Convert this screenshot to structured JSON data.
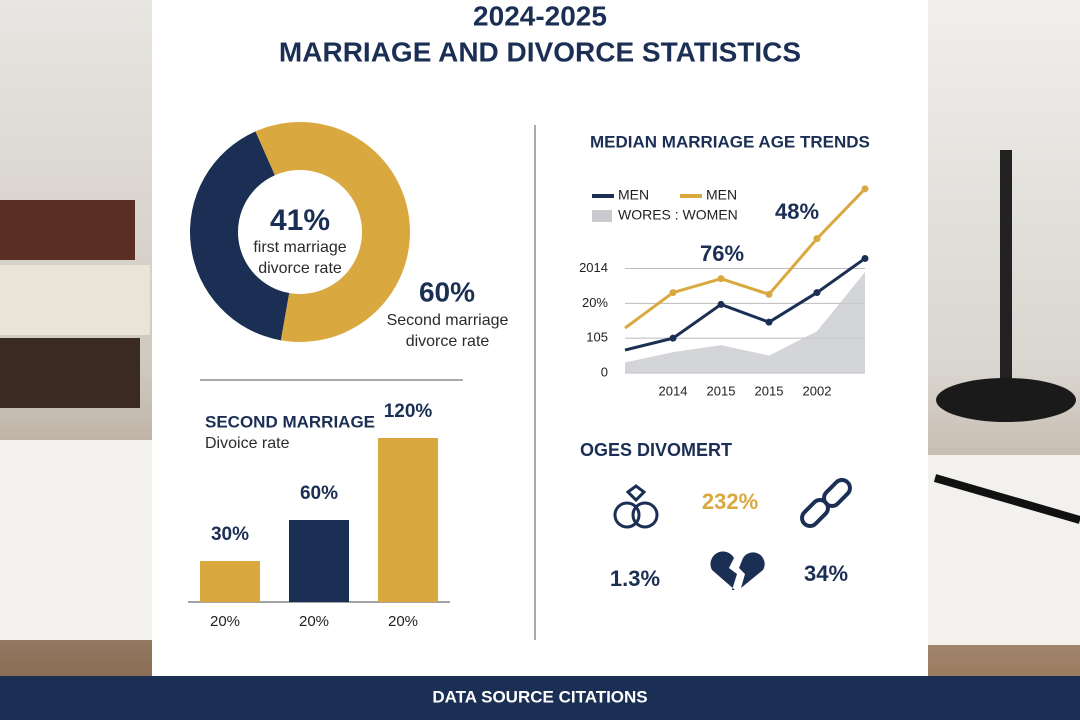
{
  "header": {
    "title": "2024-2025",
    "subtitle": "MARRIAGE AND DIVORCE STATISTICS"
  },
  "chart_data": [
    {
      "type": "donut",
      "values": [
        41,
        60
      ],
      "value_labels": [
        "41%",
        "60%"
      ],
      "labels": [
        "first marriage divorce rate",
        "Second marriage divorce rate"
      ],
      "colors": [
        "#1b2f55",
        "#d9a83e"
      ]
    },
    {
      "type": "line",
      "title": "MEDIAN MARRIAGE AGE TRENDS",
      "categories": [
        null,
        "2014",
        "2015",
        "2015",
        "2002",
        null
      ],
      "ylim": [
        0,
        5.4
      ],
      "yticks": [
        0,
        {
          "value": 1,
          "label": "105"
        },
        {
          "value": 2,
          "label": "20%"
        },
        {
          "value": 3,
          "label": "2014"
        }
      ],
      "series": [
        {
          "name": "MEN",
          "color": "#1b2f55",
          "values": [
            0.66,
            1.0,
            1.97,
            1.46,
            2.31,
            3.29
          ]
        },
        {
          "name": "MEN",
          "color": "#d9a83e",
          "values": [
            1.29,
            2.31,
            2.71,
            2.26,
            3.86,
            5.29
          ]
        },
        {
          "name": "WORES :  WOMEN",
          "color": "#c9cacf",
          "kind": "area",
          "values": [
            0.3,
            0.6,
            0.8,
            0.5,
            1.2,
            2.9
          ]
        }
      ],
      "annotations": [
        "76%",
        "48%"
      ]
    },
    {
      "type": "bar",
      "title": "SECOND MARRIAGE",
      "subtitle": "Divoice rate",
      "categories": [
        "20%",
        "20%",
        "20%"
      ],
      "values": [
        30,
        60,
        120
      ],
      "value_labels": [
        "30%",
        "60%",
        "120%"
      ],
      "colors": [
        "#d9a83e",
        "#1b2f55",
        "#d9a83e"
      ]
    }
  ],
  "stats": {
    "title": "OGES DIVOMERT",
    "items": [
      "232%",
      "1.3%",
      "34%"
    ]
  },
  "footer": {
    "text": "DATA SOURCE CITATIONS"
  }
}
